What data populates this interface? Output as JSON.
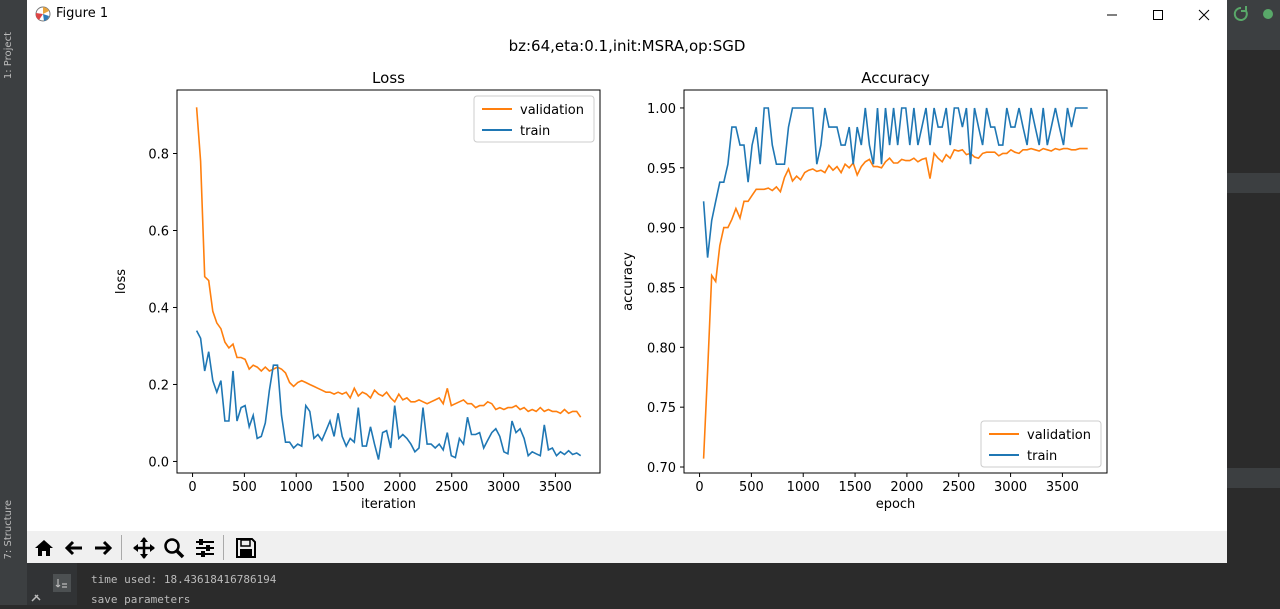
{
  "window": {
    "title": "Figure 1"
  },
  "ide": {
    "project_tab": "1: Project",
    "structure_tab": "7: Structure"
  },
  "figure": {
    "suptitle": "bz:64,eta:0.1,init:MSRA,op:SGD"
  },
  "toolbar": {
    "buttons": [
      "home-icon",
      "back-arrow-icon",
      "forward-arrow-icon",
      "pan-icon",
      "zoom-icon",
      "configure-icon",
      "save-icon"
    ]
  },
  "console": {
    "lines": [
      "time used: 18.43618416786194",
      "save parameters"
    ]
  },
  "colors": {
    "validation": "#ff7f0e",
    "train": "#1f77b4"
  },
  "chart_data": [
    {
      "type": "line",
      "title": "Loss",
      "xlabel": "iteration",
      "ylabel": "loss",
      "xlim": [
        -150,
        3930
      ],
      "ylim": [
        -0.03,
        0.965
      ],
      "xticks": [
        0,
        500,
        1000,
        1500,
        2000,
        2500,
        3000,
        3500
      ],
      "yticks": [
        0.0,
        0.2,
        0.4,
        0.6,
        0.8
      ],
      "ytick_labels": [
        "0.0",
        "0.2",
        "0.4",
        "0.6",
        "0.8"
      ],
      "legend": "top-right",
      "series": [
        {
          "name": "validation",
          "x": [
            39,
            78,
            117,
            156,
            195,
            234,
            273,
            312,
            351,
            390,
            429,
            468,
            507,
            546,
            585,
            624,
            663,
            702,
            741,
            780,
            819,
            858,
            897,
            936,
            975,
            1014,
            1053,
            1092,
            1131,
            1170,
            1209,
            1248,
            1287,
            1326,
            1365,
            1404,
            1443,
            1482,
            1521,
            1560,
            1599,
            1638,
            1677,
            1716,
            1755,
            1794,
            1833,
            1872,
            1911,
            1950,
            1989,
            2028,
            2067,
            2106,
            2145,
            2184,
            2223,
            2262,
            2301,
            2340,
            2379,
            2418,
            2457,
            2496,
            2535,
            2574,
            2613,
            2652,
            2691,
            2730,
            2769,
            2808,
            2847,
            2886,
            2925,
            2964,
            3003,
            3042,
            3081,
            3120,
            3159,
            3198,
            3237,
            3276,
            3315,
            3354,
            3393,
            3432,
            3471,
            3510,
            3549,
            3588,
            3627,
            3666,
            3705,
            3744
          ],
          "y": [
            0.92,
            0.78,
            0.48,
            0.47,
            0.39,
            0.36,
            0.345,
            0.31,
            0.295,
            0.305,
            0.27,
            0.27,
            0.265,
            0.24,
            0.25,
            0.245,
            0.235,
            0.245,
            0.235,
            0.24,
            0.245,
            0.24,
            0.23,
            0.205,
            0.195,
            0.205,
            0.21,
            0.205,
            0.2,
            0.195,
            0.19,
            0.185,
            0.18,
            0.18,
            0.175,
            0.18,
            0.175,
            0.18,
            0.165,
            0.19,
            0.17,
            0.18,
            0.175,
            0.165,
            0.185,
            0.175,
            0.17,
            0.18,
            0.165,
            0.155,
            0.175,
            0.16,
            0.165,
            0.155,
            0.155,
            0.16,
            0.155,
            0.15,
            0.155,
            0.16,
            0.165,
            0.15,
            0.19,
            0.145,
            0.15,
            0.155,
            0.16,
            0.15,
            0.15,
            0.14,
            0.145,
            0.145,
            0.155,
            0.15,
            0.135,
            0.14,
            0.135,
            0.14,
            0.14,
            0.145,
            0.135,
            0.14,
            0.13,
            0.135,
            0.13,
            0.14,
            0.13,
            0.135,
            0.13,
            0.13,
            0.125,
            0.135,
            0.125,
            0.13,
            0.13,
            0.115
          ]
        },
        {
          "name": "train",
          "x": [
            39,
            78,
            117,
            156,
            195,
            234,
            273,
            312,
            351,
            390,
            429,
            468,
            507,
            546,
            585,
            624,
            663,
            702,
            741,
            780,
            819,
            858,
            897,
            936,
            975,
            1014,
            1053,
            1092,
            1131,
            1170,
            1209,
            1248,
            1287,
            1326,
            1365,
            1404,
            1443,
            1482,
            1521,
            1560,
            1599,
            1638,
            1677,
            1716,
            1755,
            1794,
            1833,
            1872,
            1911,
            1950,
            1989,
            2028,
            2067,
            2106,
            2145,
            2184,
            2223,
            2262,
            2301,
            2340,
            2379,
            2418,
            2457,
            2496,
            2535,
            2574,
            2613,
            2652,
            2691,
            2730,
            2769,
            2808,
            2847,
            2886,
            2925,
            2964,
            3003,
            3042,
            3081,
            3120,
            3159,
            3198,
            3237,
            3276,
            3315,
            3354,
            3393,
            3432,
            3471,
            3510,
            3549,
            3588,
            3627,
            3666,
            3705,
            3744
          ],
          "y": [
            0.34,
            0.32,
            0.235,
            0.285,
            0.21,
            0.18,
            0.21,
            0.105,
            0.105,
            0.235,
            0.105,
            0.14,
            0.145,
            0.09,
            0.12,
            0.06,
            0.065,
            0.1,
            0.185,
            0.25,
            0.25,
            0.12,
            0.05,
            0.05,
            0.035,
            0.045,
            0.04,
            0.145,
            0.13,
            0.06,
            0.07,
            0.055,
            0.08,
            0.105,
            0.065,
            0.125,
            0.065,
            0.04,
            0.06,
            0.05,
            0.14,
            0.04,
            0.04,
            0.09,
            0.045,
            0.005,
            0.075,
            0.08,
            0.035,
            0.145,
            0.06,
            0.07,
            0.06,
            0.045,
            0.025,
            0.035,
            0.14,
            0.045,
            0.045,
            0.035,
            0.045,
            0.03,
            0.075,
            0.015,
            0.01,
            0.06,
            0.045,
            0.115,
            0.07,
            0.07,
            0.075,
            0.035,
            0.055,
            0.075,
            0.085,
            0.065,
            0.025,
            0.02,
            0.105,
            0.075,
            0.085,
            0.06,
            0.015,
            0.025,
            0.02,
            0.015,
            0.095,
            0.03,
            0.035,
            0.015,
            0.025,
            0.018,
            0.028,
            0.018,
            0.022,
            0.015
          ]
        }
      ]
    },
    {
      "type": "line",
      "title": "Accuracy",
      "xlabel": "epoch",
      "ylabel": "accuracy",
      "xlim": [
        -150,
        3930
      ],
      "ylim": [
        0.695,
        1.015
      ],
      "xticks": [
        0,
        500,
        1000,
        1500,
        2000,
        2500,
        3000,
        3500
      ],
      "yticks": [
        0.7,
        0.75,
        0.8,
        0.85,
        0.9,
        0.95,
        1.0
      ],
      "ytick_labels": [
        "0.70",
        "0.75",
        "0.80",
        "0.85",
        "0.90",
        "0.95",
        "1.00"
      ],
      "legend": "bottom-right",
      "series": [
        {
          "name": "validation",
          "x": [
            39,
            78,
            117,
            156,
            195,
            234,
            273,
            312,
            351,
            390,
            429,
            468,
            507,
            546,
            585,
            624,
            663,
            702,
            741,
            780,
            819,
            858,
            897,
            936,
            975,
            1014,
            1053,
            1092,
            1131,
            1170,
            1209,
            1248,
            1287,
            1326,
            1365,
            1404,
            1443,
            1482,
            1521,
            1560,
            1599,
            1638,
            1677,
            1716,
            1755,
            1794,
            1833,
            1872,
            1911,
            1950,
            1989,
            2028,
            2067,
            2106,
            2145,
            2184,
            2223,
            2262,
            2301,
            2340,
            2379,
            2418,
            2457,
            2496,
            2535,
            2574,
            2613,
            2652,
            2691,
            2730,
            2769,
            2808,
            2847,
            2886,
            2925,
            2964,
            3003,
            3042,
            3081,
            3120,
            3159,
            3198,
            3237,
            3276,
            3315,
            3354,
            3393,
            3432,
            3471,
            3510,
            3549,
            3588,
            3627,
            3666,
            3705,
            3744
          ],
          "y": [
            0.707,
            0.78,
            0.86,
            0.855,
            0.885,
            0.9,
            0.9,
            0.907,
            0.916,
            0.908,
            0.922,
            0.922,
            0.927,
            0.932,
            0.932,
            0.932,
            0.933,
            0.931,
            0.934,
            0.93,
            0.942,
            0.949,
            0.939,
            0.943,
            0.94,
            0.946,
            0.948,
            0.949,
            0.947,
            0.948,
            0.946,
            0.952,
            0.948,
            0.951,
            0.946,
            0.953,
            0.95,
            0.954,
            0.944,
            0.951,
            0.955,
            0.957,
            0.951,
            0.951,
            0.95,
            0.955,
            0.958,
            0.954,
            0.954,
            0.957,
            0.956,
            0.956,
            0.958,
            0.955,
            0.957,
            0.958,
            0.941,
            0.962,
            0.958,
            0.955,
            0.961,
            0.958,
            0.965,
            0.964,
            0.965,
            0.961,
            0.962,
            0.959,
            0.958,
            0.962,
            0.963,
            0.963,
            0.963,
            0.96,
            0.962,
            0.962,
            0.965,
            0.963,
            0.962,
            0.965,
            0.965,
            0.966,
            0.965,
            0.964,
            0.966,
            0.965,
            0.964,
            0.966,
            0.965,
            0.966,
            0.966,
            0.965,
            0.965,
            0.966,
            0.966,
            0.966
          ]
        },
        {
          "name": "train",
          "x": [
            39,
            78,
            117,
            156,
            195,
            234,
            273,
            312,
            351,
            390,
            429,
            468,
            507,
            546,
            585,
            624,
            663,
            702,
            741,
            780,
            819,
            858,
            897,
            936,
            975,
            1014,
            1053,
            1092,
            1131,
            1170,
            1209,
            1248,
            1287,
            1326,
            1365,
            1404,
            1443,
            1482,
            1521,
            1560,
            1599,
            1638,
            1677,
            1716,
            1755,
            1794,
            1833,
            1872,
            1911,
            1950,
            1989,
            2028,
            2067,
            2106,
            2145,
            2184,
            2223,
            2262,
            2301,
            2340,
            2379,
            2418,
            2457,
            2496,
            2535,
            2574,
            2613,
            2652,
            2691,
            2730,
            2769,
            2808,
            2847,
            2886,
            2925,
            2964,
            3003,
            3042,
            3081,
            3120,
            3159,
            3198,
            3237,
            3276,
            3315,
            3354,
            3393,
            3432,
            3471,
            3510,
            3549,
            3588,
            3627,
            3666,
            3705,
            3744
          ],
          "y": [
            0.922,
            0.875,
            0.906,
            0.922,
            0.938,
            0.938,
            0.953,
            0.984,
            0.984,
            0.969,
            0.969,
            0.938,
            0.969,
            0.984,
            0.953,
            1.0,
            1.0,
            0.969,
            0.953,
            0.953,
            0.953,
            0.984,
            1.0,
            1.0,
            1.0,
            1.0,
            1.0,
            1.0,
            0.953,
            0.969,
            1.0,
            0.984,
            0.984,
            0.984,
            0.969,
            0.969,
            0.984,
            0.953,
            0.984,
            0.969,
            1.0,
            0.969,
            0.953,
            1.0,
            0.953,
            1.0,
            0.969,
            1.0,
            0.969,
            1.0,
            1.0,
            0.969,
            1.0,
            0.969,
            0.984,
            1.0,
            0.969,
            1.0,
            0.984,
            0.984,
            1.0,
            0.969,
            1.0,
            1.0,
            0.984,
            1.0,
            0.953,
            1.0,
            0.984,
            0.969,
            1.0,
            0.984,
            0.984,
            0.969,
            0.969,
            1.0,
            0.984,
            0.984,
            1.0,
            0.984,
            0.969,
            1.0,
            0.984,
            0.969,
            1.0,
            0.969,
            0.984,
            1.0,
            0.984,
            0.969,
            1.0,
            0.984,
            1.0,
            1.0,
            1.0,
            1.0
          ]
        }
      ]
    }
  ]
}
